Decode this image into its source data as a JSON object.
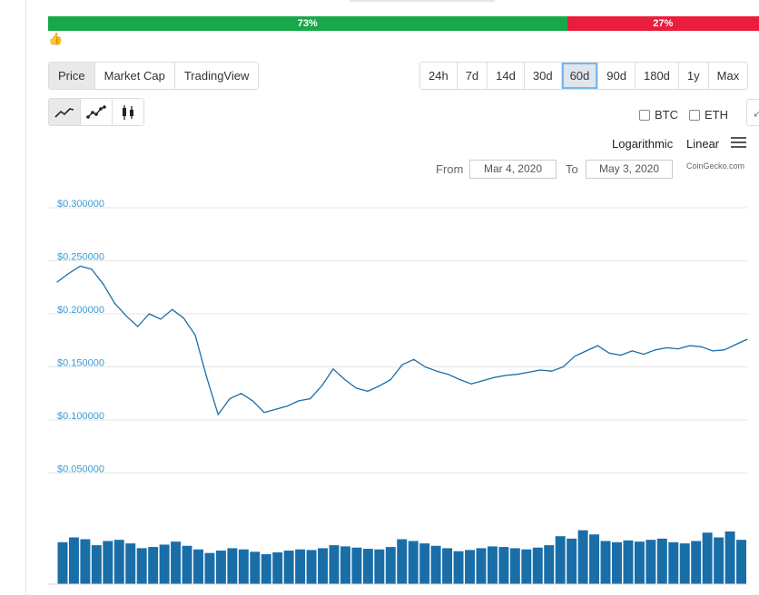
{
  "sentiment": {
    "up_label": "73%",
    "down_label": "27%",
    "up_percent": 73,
    "down_percent": 27
  },
  "view_tabs": [
    {
      "label": "Price",
      "active": true
    },
    {
      "label": "Market Cap",
      "active": false
    },
    {
      "label": "TradingView",
      "active": false
    }
  ],
  "ranges": [
    "24h",
    "7d",
    "14d",
    "30d",
    "60d",
    "90d",
    "180d",
    "1y",
    "Max"
  ],
  "selected_range": "60d",
  "chart_types": [
    "line-chart-icon",
    "scatter-line-icon",
    "candlestick-icon"
  ],
  "compare": {
    "btc": "BTC",
    "eth": "ETH"
  },
  "scale": {
    "log": "Logarithmic",
    "linear": "Linear"
  },
  "date_range": {
    "from_label": "From",
    "from": "Mar 4, 2020",
    "to_label": "To",
    "to": "May 3, 2020"
  },
  "credit": "CoinGecko.com",
  "colors": {
    "line": "#1a6ea8",
    "axis_label": "#3a9bd5",
    "up": "#17a84a",
    "down": "#ea1d3c"
  },
  "chart_data": {
    "type": "line",
    "title": "",
    "xlabel": "",
    "ylabel": "",
    "ylim": [
      0,
      0.3
    ],
    "ytick_labels": [
      "$0.300000",
      "$0.250000",
      "$0.200000",
      "$0.150000",
      "$0.100000",
      "$0.050000"
    ],
    "ytick_values": [
      0.3,
      0.25,
      0.2,
      0.15,
      0.1,
      0.05
    ],
    "grid": true,
    "x_days": [
      0,
      1,
      2,
      3,
      4,
      5,
      6,
      7,
      8,
      9,
      10,
      11,
      12,
      13,
      14,
      15,
      16,
      17,
      18,
      19,
      20,
      21,
      22,
      23,
      24,
      25,
      26,
      27,
      28,
      29,
      30,
      31,
      32,
      33,
      34,
      35,
      36,
      37,
      38,
      39,
      40,
      41,
      42,
      43,
      44,
      45,
      46,
      47,
      48,
      49,
      50,
      51,
      52,
      53,
      54,
      55,
      56,
      57,
      58,
      59,
      60
    ],
    "series": [
      {
        "values": [
          0.23,
          0.238,
          0.245,
          0.242,
          0.228,
          0.21,
          0.198,
          0.188,
          0.2,
          0.195,
          0.204,
          0.196,
          0.18,
          0.14,
          0.105,
          0.12,
          0.125,
          0.118,
          0.107,
          0.11,
          0.113,
          0.118,
          0.12,
          0.132,
          0.148,
          0.138,
          0.13,
          0.127,
          0.132,
          0.138,
          0.152,
          0.157,
          0.15,
          0.146,
          0.143,
          0.138,
          0.134,
          0.137,
          0.14,
          0.142,
          0.143,
          0.145,
          0.147,
          0.146,
          0.15,
          0.16,
          0.165,
          0.17,
          0.163,
          0.161,
          0.165,
          0.162,
          0.166,
          0.168,
          0.167,
          0.17,
          0.169,
          0.165,
          0.166,
          0.171,
          0.176
        ],
        "color": "#1a6ea8"
      }
    ],
    "volume": {
      "values": [
        0.7,
        0.78,
        0.75,
        0.65,
        0.72,
        0.74,
        0.68,
        0.6,
        0.62,
        0.66,
        0.71,
        0.64,
        0.58,
        0.52,
        0.56,
        0.6,
        0.58,
        0.54,
        0.5,
        0.53,
        0.56,
        0.58,
        0.57,
        0.6,
        0.65,
        0.63,
        0.61,
        0.59,
        0.58,
        0.62,
        0.75,
        0.72,
        0.68,
        0.64,
        0.6,
        0.55,
        0.57,
        0.6,
        0.63,
        0.62,
        0.6,
        0.58,
        0.61,
        0.65,
        0.8,
        0.76,
        0.9,
        0.83,
        0.72,
        0.7,
        0.73,
        0.71,
        0.74,
        0.76,
        0.7,
        0.68,
        0.72,
        0.86,
        0.78,
        0.88,
        0.74
      ],
      "color": "#1a6ea8"
    }
  }
}
